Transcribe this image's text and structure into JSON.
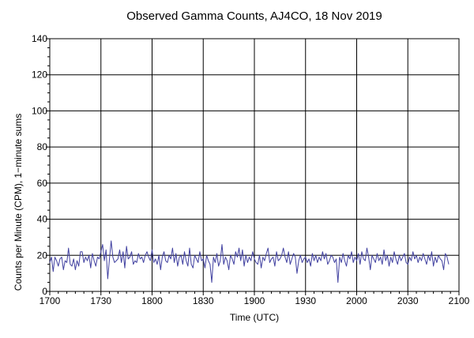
{
  "chart_data": {
    "type": "line",
    "title": "Observed Gamma Counts, AJ4CO, 18 Nov 2019",
    "xlabel": "Time (UTC)",
    "ylabel": "Counts per Minute (CPM), 1−minute sums",
    "x_tick_labels": [
      "1700",
      "1730",
      "1800",
      "1830",
      "1900",
      "1930",
      "2000",
      "2030",
      "2100"
    ],
    "y_ticks": [
      0,
      20,
      40,
      60,
      80,
      100,
      120,
      140
    ],
    "xlim_minutes_since_1700": [
      0,
      240
    ],
    "ylim": [
      0,
      140
    ],
    "grid": true,
    "colors": {
      "line": "#4040a0",
      "grid": "#000000",
      "frame": "#000000"
    },
    "series": [
      {
        "x_start": "1700",
        "x_step_minutes": 1,
        "values": [
          16,
          19,
          11,
          19,
          17,
          14,
          18,
          19,
          12,
          17,
          16,
          24,
          15,
          14,
          18,
          12,
          17,
          14,
          22,
          22,
          16,
          19,
          17,
          20,
          13,
          21,
          17,
          14,
          19,
          18,
          22,
          26,
          17,
          23,
          7,
          18,
          28,
          19,
          16,
          17,
          18,
          23,
          16,
          22,
          13,
          25,
          18,
          19,
          22,
          15,
          17,
          16,
          21,
          18,
          19,
          16,
          20,
          22,
          19,
          17,
          23,
          16,
          18,
          15,
          20,
          12,
          19,
          22,
          17,
          16,
          20,
          18,
          24,
          16,
          21,
          14,
          19,
          20,
          15,
          22,
          17,
          14,
          24,
          15,
          13,
          20,
          18,
          16,
          22,
          17,
          18,
          13,
          20,
          17,
          15,
          5,
          19,
          16,
          21,
          14,
          17,
          26,
          15,
          19,
          17,
          12,
          20,
          18,
          15,
          22,
          19,
          24,
          17,
          23,
          14,
          20,
          16,
          19,
          17,
          22,
          18,
          16,
          15,
          20,
          13,
          19,
          17,
          21,
          24,
          16,
          18,
          19,
          14,
          22,
          17,
          18,
          20,
          24,
          19,
          16,
          22,
          15,
          18,
          21,
          19,
          10,
          17,
          20,
          16,
          18,
          19,
          16,
          18,
          14,
          21,
          17,
          20,
          16,
          19,
          17,
          22,
          18,
          21,
          15,
          17,
          20,
          19,
          16,
          18,
          5,
          19,
          16,
          21,
          17,
          14,
          20,
          18,
          22,
          16,
          19,
          17,
          21,
          15,
          22,
          18,
          17,
          24,
          19,
          12,
          20,
          18,
          16,
          21,
          17,
          19,
          15,
          23,
          17,
          20,
          14,
          19,
          16,
          22,
          18,
          15,
          20,
          17,
          19,
          21,
          16,
          15,
          19,
          17,
          22,
          18,
          20,
          16,
          19,
          17,
          21,
          18,
          15,
          20,
          17,
          22,
          14,
          19,
          16,
          20,
          18,
          17,
          12,
          21,
          19,
          15
        ]
      }
    ]
  }
}
